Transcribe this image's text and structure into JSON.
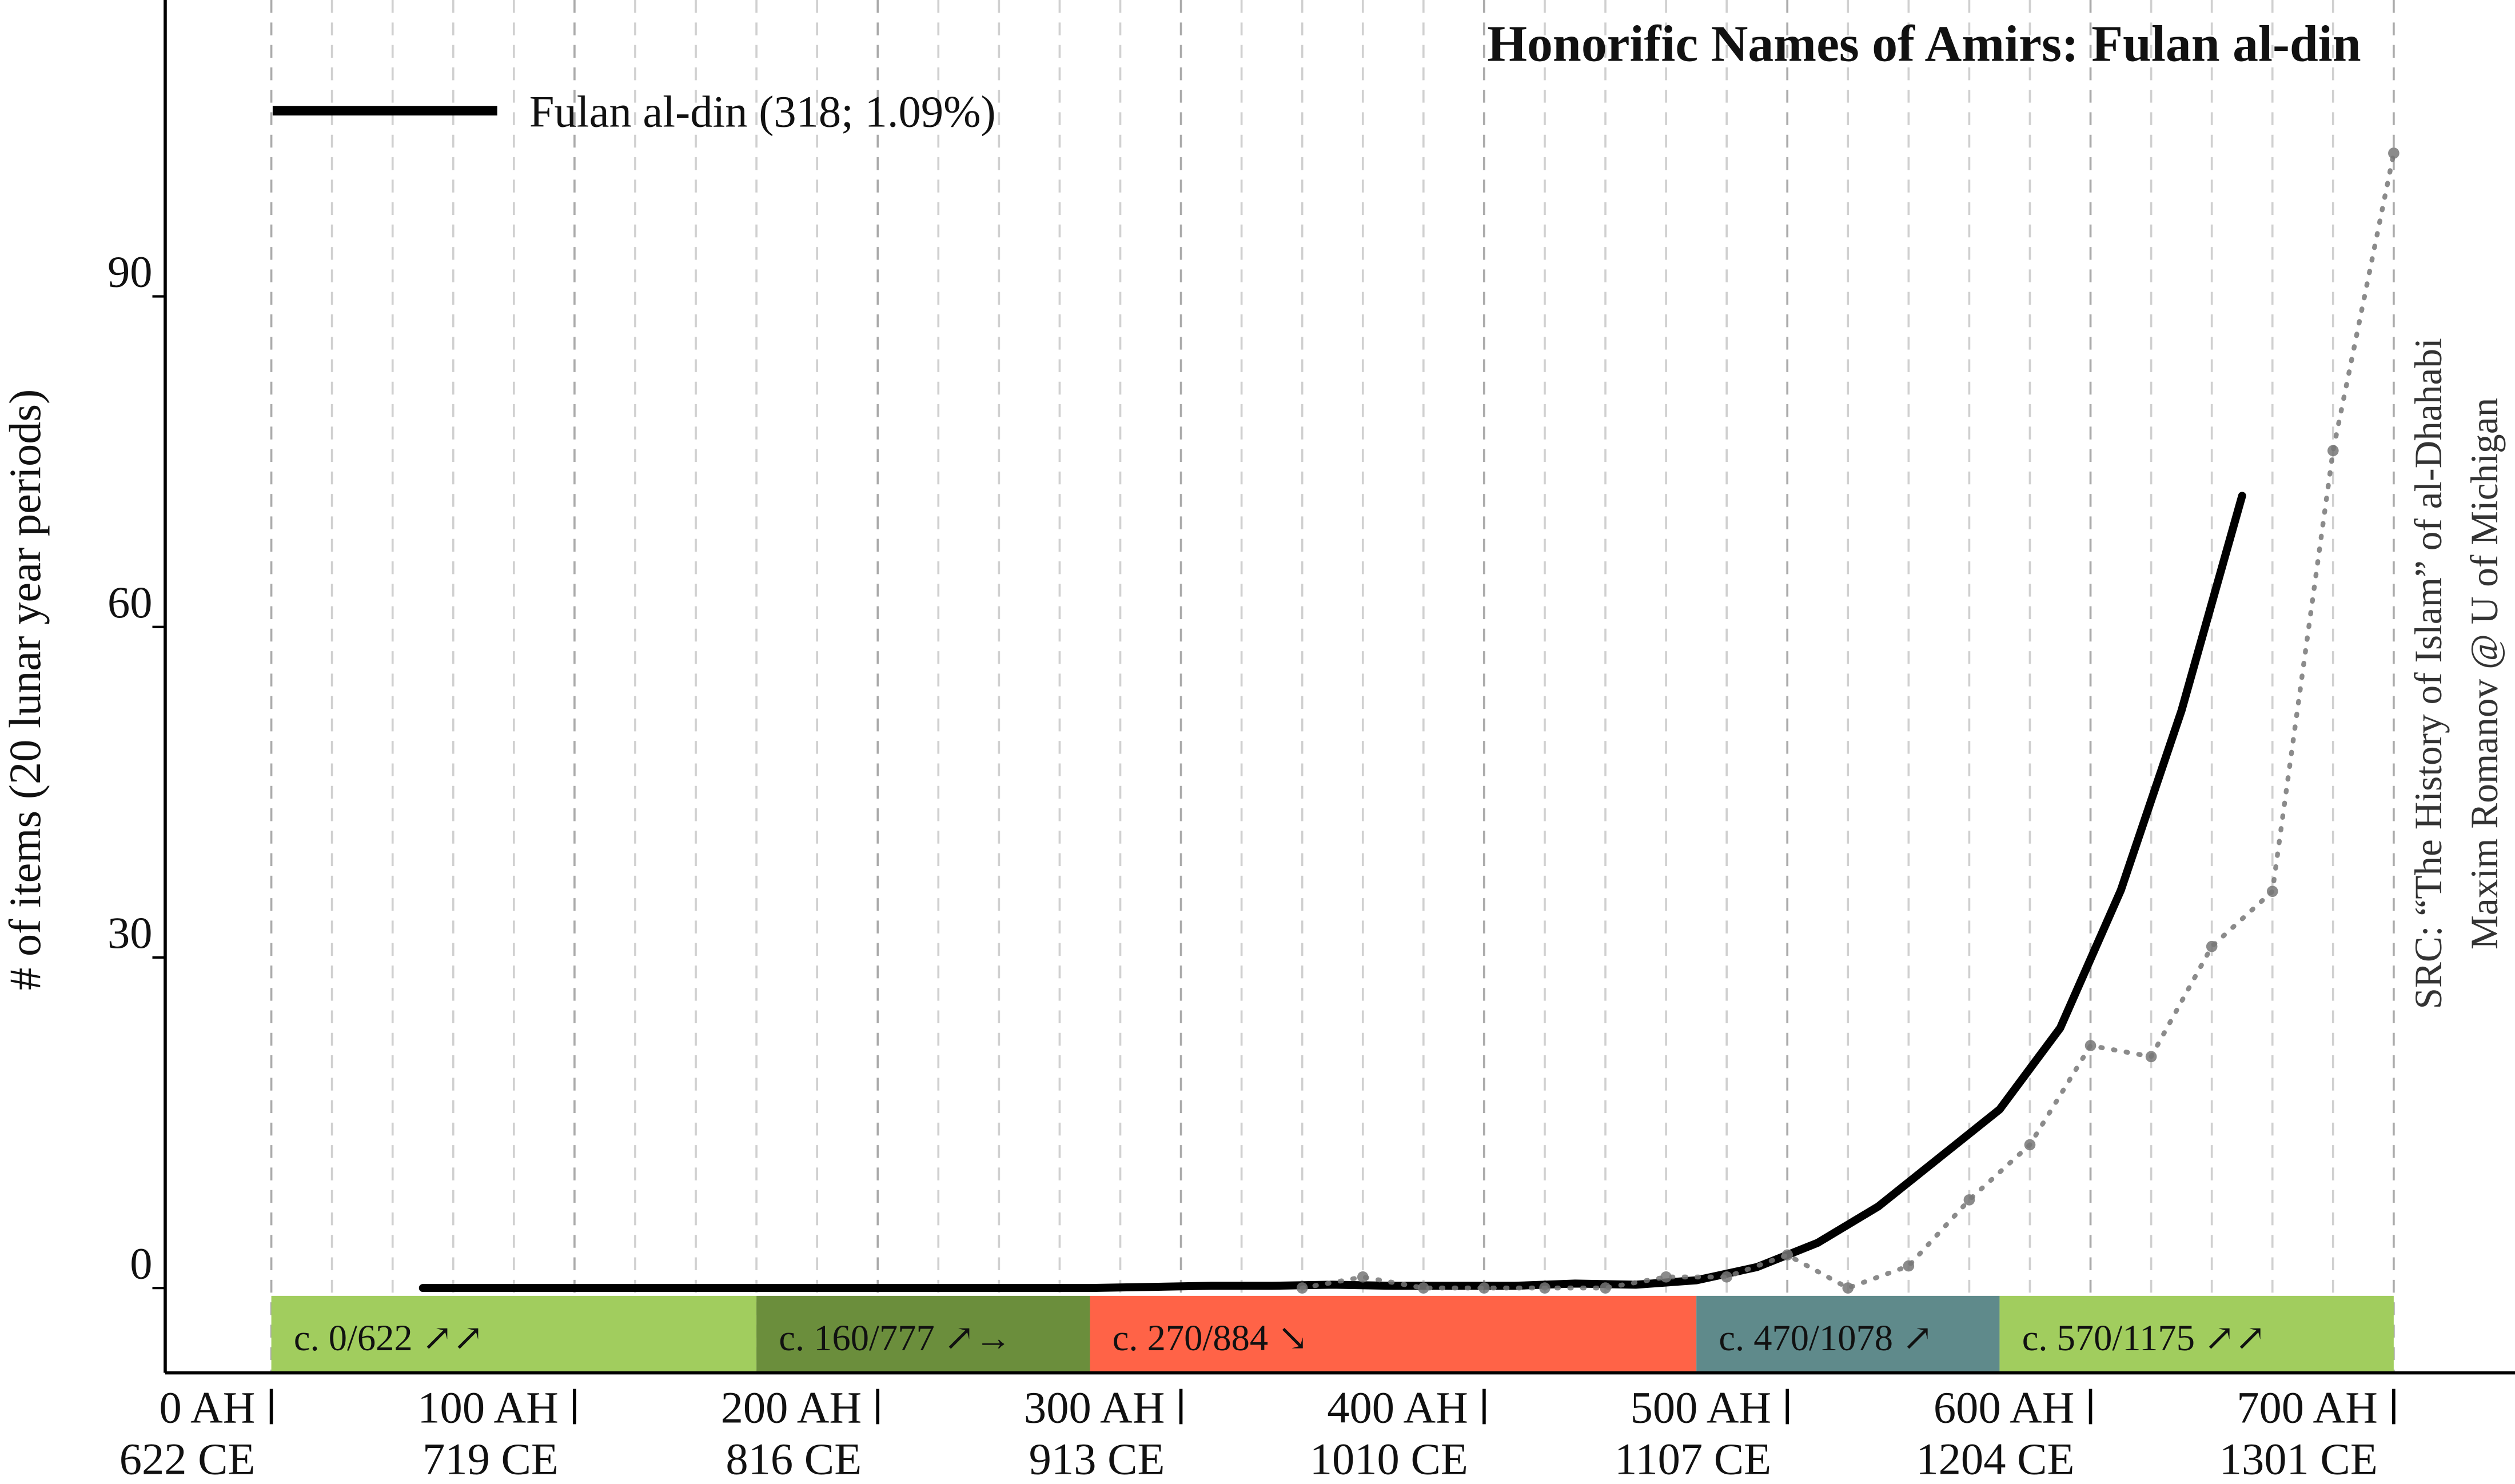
{
  "chart_data": {
    "type": "line",
    "title": "Honorific Names of Amirs: Fulan al-din",
    "y_label": "# of items (20 lunar year periods)",
    "source": [
      "SRC: “The History of Islam” of al-Dhahabi",
      "Maxim Romanov @ U of Michigan"
    ],
    "xlim": [
      -35,
      740
    ],
    "ylim": [
      -7.7,
      116.9
    ],
    "xticks": [
      {
        "value": 0,
        "label": [
          "0 AH",
          "622 CE"
        ]
      },
      {
        "value": 100,
        "label": [
          "100 AH",
          "719 CE"
        ]
      },
      {
        "value": 200,
        "label": [
          "200 AH",
          "816 CE"
        ]
      },
      {
        "value": 300,
        "label": [
          "300 AH",
          "913 CE"
        ]
      },
      {
        "value": 400,
        "label": [
          "400 AH",
          "1010 CE"
        ]
      },
      {
        "value": 500,
        "label": [
          "500 AH",
          "1107 CE"
        ]
      },
      {
        "value": 600,
        "label": [
          "600 AH",
          "1204 CE"
        ]
      },
      {
        "value": 700,
        "label": [
          "700 AH",
          "1301 CE"
        ]
      }
    ],
    "xminorticks": [
      0,
      20,
      40,
      60,
      80,
      100,
      120,
      140,
      160,
      180,
      200,
      220,
      240,
      260,
      280,
      300,
      320,
      340,
      360,
      380,
      400,
      420,
      440,
      460,
      480,
      500,
      520,
      540,
      560,
      580,
      600,
      620,
      640,
      660,
      680,
      700
    ],
    "yticks": [
      0,
      30,
      60,
      90
    ],
    "grid": true,
    "legend": "top-left",
    "series": [
      {
        "name": "Fulan al-din (318; 1.09%)",
        "color": "#000000",
        "style": "solid",
        "x": [
          50,
          70,
          90,
          110,
          130,
          150,
          170,
          190,
          210,
          230,
          250,
          270,
          290,
          310,
          330,
          350,
          370,
          390,
          410,
          430,
          450,
          470,
          490,
          510,
          530,
          550,
          570,
          590,
          610,
          630,
          650
        ],
        "values": [
          0,
          0,
          0,
          0,
          0,
          0,
          0,
          0,
          0,
          0,
          0,
          0,
          0.1,
          0.2,
          0.2,
          0.3,
          0.2,
          0.2,
          0.2,
          0.4,
          0.3,
          0.7,
          1.9,
          4.1,
          7.4,
          11.8,
          16.2,
          23.6,
          36.1,
          52.4,
          71.9
        ]
      },
      {
        "color": "#777777",
        "style": "dotted",
        "x": [
          340,
          360,
          380,
          400,
          420,
          440,
          460,
          480,
          500,
          520,
          540,
          560,
          580,
          600,
          620,
          640,
          660,
          680,
          700
        ],
        "values": [
          0,
          1,
          0,
          0,
          0,
          0,
          1,
          1,
          3,
          0,
          2,
          8,
          13,
          22,
          21,
          31,
          36,
          76,
          103
        ]
      }
    ],
    "periods": [
      {
        "label": "c. 0/622 ↗↗",
        "start": 0,
        "end": 160,
        "color": "#a1cd5e"
      },
      {
        "label": "c. 160/777 ↗→",
        "start": 160,
        "end": 270,
        "color": "#6b8e3c"
      },
      {
        "label": "c. 270/884 ↘",
        "start": 270,
        "end": 470,
        "color": "#ff6347"
      },
      {
        "label": "c. 470/1078 ↗",
        "start": 470,
        "end": 570,
        "color": "#5f8a8b"
      },
      {
        "label": "c. 570/1175 ↗↗",
        "start": 570,
        "end": 700,
        "color": "#a1cd5e"
      }
    ]
  }
}
